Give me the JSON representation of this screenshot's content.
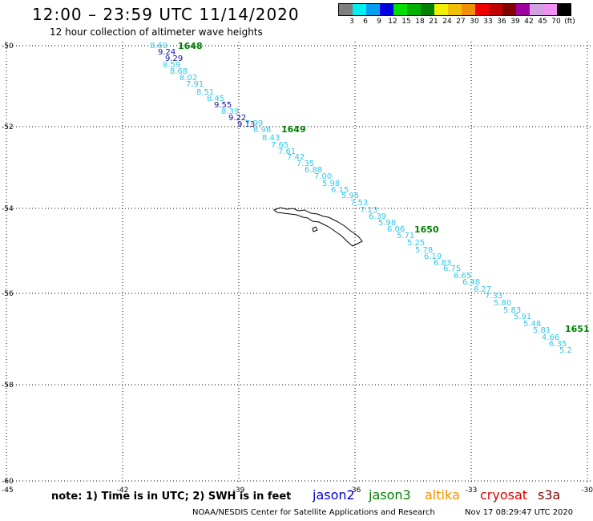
{
  "title": "12:00 – 23:59 UTC 11/14/2020",
  "subtitle": "12 hour collection of altimeter wave heights",
  "colorbar": {
    "colors": [
      "#7f7f7f",
      "#00f0f0",
      "#00a0f0",
      "#0000e0",
      "#00e000",
      "#00b000",
      "#008000",
      "#f0f000",
      "#f0c000",
      "#f09000",
      "#f00000",
      "#c00000",
      "#800000",
      "#a000a0",
      "#d0a0e0",
      "#f090f0",
      "#000000"
    ],
    "labels": [
      "3",
      "6",
      "9",
      "12",
      "15",
      "18",
      "21",
      "24",
      "27",
      "30",
      "33",
      "36",
      "39",
      "42",
      "45",
      "70",
      "(ft)"
    ]
  },
  "axes": {
    "x_ticks": [
      "-45",
      "-42",
      "-39",
      "-36",
      "-33",
      "-30"
    ],
    "y_ticks": [
      "-50",
      "-52",
      "-54",
      "-56",
      "-58",
      "-60"
    ]
  },
  "track": {
    "color_light": "#30c8e8",
    "color_dark": "#1010a0",
    "label_color": "#008000",
    "orbit_labels": [
      "1648",
      "1649",
      "1650",
      "1651"
    ],
    "values": [
      {
        "t": "8.69",
        "c": "light"
      },
      {
        "t": "9.24",
        "c": "dark"
      },
      {
        "t": "9.29",
        "c": "dark"
      },
      {
        "t": "8.59",
        "c": "light"
      },
      {
        "t": "8.68",
        "c": "light"
      },
      {
        "t": "8.02",
        "c": "light"
      },
      {
        "t": "7.91",
        "c": "light"
      },
      {
        "t": "8.51",
        "c": "light"
      },
      {
        "t": "8.45",
        "c": "light"
      },
      {
        "t": "9.55",
        "c": "dark"
      },
      {
        "t": "8.39",
        "c": "light"
      },
      {
        "t": "9.22",
        "c": "dark"
      },
      {
        "t": "9.13",
        "c": "dark"
      },
      {
        "t": "7.99",
        "c": "light"
      },
      {
        "t": "8.98",
        "c": "light"
      },
      {
        "t": "8.43",
        "c": "light"
      },
      {
        "t": "7.65",
        "c": "light"
      },
      {
        "t": "7.61",
        "c": "light"
      },
      {
        "t": "7.42",
        "c": "light"
      },
      {
        "t": "7.35",
        "c": "light"
      },
      {
        "t": "6.88",
        "c": "light"
      },
      {
        "t": "7.00",
        "c": "light"
      },
      {
        "t": "5.98",
        "c": "light"
      },
      {
        "t": "6.15",
        "c": "light"
      },
      {
        "t": "5.95",
        "c": "light"
      },
      {
        "t": "7.53",
        "c": "light"
      },
      {
        "t": "7.13",
        "c": "light"
      },
      {
        "t": "6.39",
        "c": "light"
      },
      {
        "t": "5.98",
        "c": "light"
      },
      {
        "t": "6.06",
        "c": "light"
      },
      {
        "t": "5.71",
        "c": "light"
      },
      {
        "t": "5.25",
        "c": "light"
      },
      {
        "t": "5.78",
        "c": "light"
      },
      {
        "t": "6.19",
        "c": "light"
      },
      {
        "t": "6.83",
        "c": "light"
      },
      {
        "t": "6.75",
        "c": "light"
      },
      {
        "t": "6.65",
        "c": "light"
      },
      {
        "t": "6.48",
        "c": "light"
      },
      {
        "t": "6.27",
        "c": "light"
      },
      {
        "t": "7.33",
        "c": "light"
      },
      {
        "t": "5.80",
        "c": "light"
      },
      {
        "t": "5.83",
        "c": "light"
      },
      {
        "t": "5.91",
        "c": "light"
      },
      {
        "t": "5.48",
        "c": "light"
      },
      {
        "t": "5.81",
        "c": "light"
      },
      {
        "t": "4.66",
        "c": "light"
      },
      {
        "t": "6.35",
        "c": "light"
      },
      {
        "t": "5.2",
        "c": "light"
      }
    ]
  },
  "note": "note: 1) Time is in UTC; 2) SWH is in feet",
  "satellites": [
    {
      "name": "jason2",
      "color": "#0000d0"
    },
    {
      "name": "jason3",
      "color": "#008000"
    },
    {
      "name": "altika",
      "color": "#f09000"
    },
    {
      "name": "cryosat",
      "color": "#e00000"
    },
    {
      "name": "s3a",
      "color": "#800000"
    }
  ],
  "footer": "NOAA/NESDIS Center for Satellite Applications and Research",
  "footer_time": "Nov 17 08:29:47 UTC 2020"
}
